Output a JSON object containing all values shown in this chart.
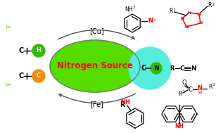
{
  "bg_color": "#ffffff",
  "ellipse_color": "#55dd00",
  "ellipse_edge": "#888888",
  "nitrogen_source_text": "Nitrogen Source",
  "nitrogen_source_color": "#ff0000",
  "cu_label": "[Cu]",
  "fe_label": "[Fe]",
  "cyan_circle_color": "#55eedd",
  "h_ball_color": "#33bb00",
  "c_ball_color": "#ff8800",
  "scissors_color": "#55cc00",
  "arrow_color": "#555555",
  "figsize": [
    3.17,
    1.89
  ],
  "dpi": 100
}
